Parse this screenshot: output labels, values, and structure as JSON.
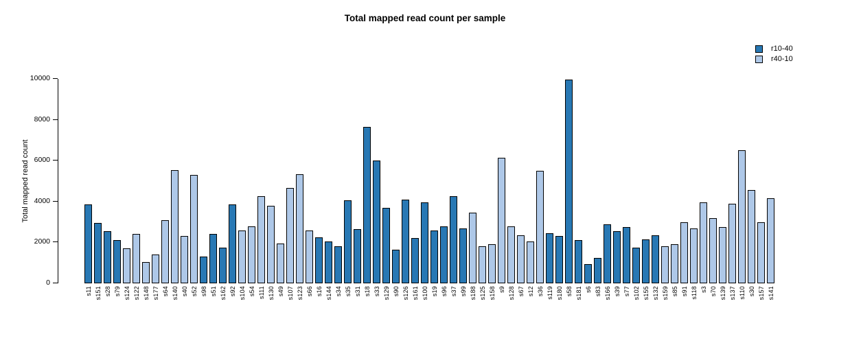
{
  "title": "Total mapped read count per sample",
  "y_axis": {
    "label": "Total mapped read count",
    "ticks": [
      0,
      2000,
      4000,
      6000,
      8000,
      10000
    ]
  },
  "legend": [
    {
      "label": "r10-40",
      "color": "#2878b4"
    },
    {
      "label": "r40-10",
      "color": "#aec8e8"
    }
  ],
  "chart_data": {
    "type": "bar",
    "title": "Total mapped read count per sample",
    "xlabel": "",
    "ylabel": "Total mapped read count",
    "ylim": [
      0,
      10000
    ],
    "yticks": [
      0,
      2000,
      4000,
      6000,
      8000,
      10000
    ],
    "grid": false,
    "legend_position": "top-right",
    "bar_border_color": "#000000",
    "colors": {
      "r10-40": "#2878b4",
      "r40-10": "#aec8e8"
    },
    "categories": [
      "s11",
      "s151",
      "s28",
      "s79",
      "s124",
      "s122",
      "s148",
      "s177",
      "s64",
      "s140",
      "s40",
      "s52",
      "s98",
      "s51",
      "s162",
      "s92",
      "s104",
      "s54",
      "s111",
      "s130",
      "s49",
      "s107",
      "s123",
      "s66",
      "s16",
      "s144",
      "s34",
      "s35",
      "s31",
      "s18",
      "s33",
      "s129",
      "s90",
      "s126",
      "s161",
      "s100",
      "s19",
      "s96",
      "s37",
      "s99",
      "s188",
      "s125",
      "s158",
      "s9",
      "s128",
      "s67",
      "s12",
      "s36",
      "s119",
      "s180",
      "s58",
      "s181",
      "s6",
      "s83",
      "s166",
      "s39",
      "s77",
      "s102",
      "s155",
      "s132",
      "s159",
      "s85",
      "s91",
      "s118",
      "s3",
      "s70",
      "s139",
      "s137",
      "s110",
      "s30",
      "s157",
      "s141"
    ],
    "values": [
      3850,
      2950,
      2550,
      2100,
      1700,
      2400,
      1050,
      1400,
      3100,
      5550,
      2300,
      5300,
      1300,
      2400,
      1750,
      3850,
      2600,
      2800,
      4250,
      3800,
      1950,
      4650,
      5350,
      2600,
      2250,
      2050,
      1800,
      4050,
      2650,
      7650,
      6000,
      3700,
      1650,
      4100,
      2200,
      3950,
      2600,
      2800,
      4250,
      2700,
      3450,
      1800,
      1900,
      6150,
      2800,
      2350,
      2050,
      5500,
      2450,
      2300,
      9950,
      2100,
      950,
      1250,
      2900,
      2550,
      2750,
      1750,
      2150,
      2350,
      1800,
      1900,
      3000,
      2700,
      3950,
      3200,
      2750,
      3900,
      6500,
      4550,
      3000,
      4150
    ],
    "bar_groups": [
      "r10-40",
      "r10-40",
      "r10-40",
      "r10-40",
      "r40-10",
      "r40-10",
      "r40-10",
      "r40-10",
      "r40-10",
      "r40-10",
      "r40-10",
      "r40-10",
      "r10-40",
      "r10-40",
      "r10-40",
      "r10-40",
      "r40-10",
      "r40-10",
      "r40-10",
      "r40-10",
      "r40-10",
      "r40-10",
      "r40-10",
      "r40-10",
      "r10-40",
      "r10-40",
      "r10-40",
      "r10-40",
      "r10-40",
      "r10-40",
      "r10-40",
      "r10-40",
      "r10-40",
      "r10-40",
      "r10-40",
      "r10-40",
      "r10-40",
      "r10-40",
      "r10-40",
      "r10-40",
      "r40-10",
      "r40-10",
      "r40-10",
      "r40-10",
      "r40-10",
      "r40-10",
      "r40-10",
      "r40-10",
      "r10-40",
      "r10-40",
      "r10-40",
      "r10-40",
      "r10-40",
      "r10-40",
      "r10-40",
      "r10-40",
      "r10-40",
      "r10-40",
      "r10-40",
      "r10-40",
      "r40-10",
      "r40-10",
      "r40-10",
      "r40-10",
      "r40-10",
      "r40-10",
      "r40-10",
      "r40-10",
      "r40-10",
      "r40-10",
      "r40-10",
      "r40-10"
    ]
  }
}
